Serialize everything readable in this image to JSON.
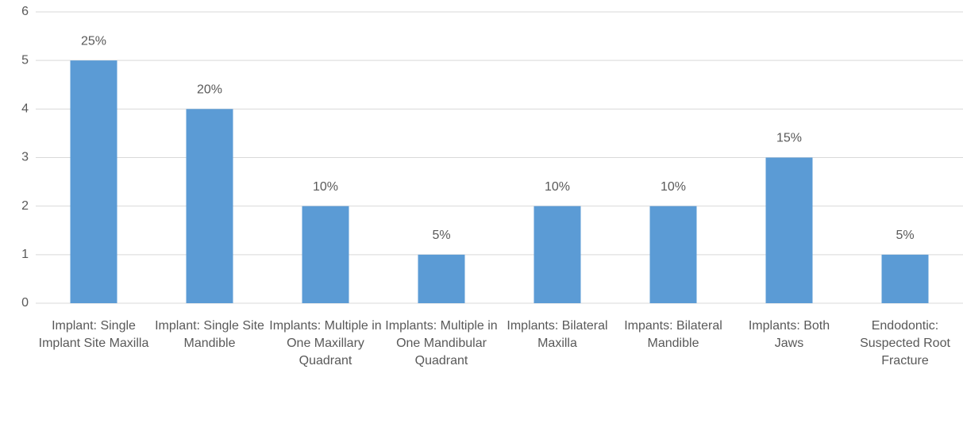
{
  "chart_data": {
    "type": "bar",
    "categories": [
      "Implant: Single Implant Site Maxilla",
      "Implant: Single Site Mandible",
      "Implants: Multiple in One Maxillary Quadrant",
      "Implants: Multiple in One Mandibular Quadrant",
      "Implants: Bilateral Maxilla",
      "Impants: Bilateral Mandible",
      "Implants: Both Jaws",
      "Endodontic: Suspected Root Fracture"
    ],
    "values": [
      5,
      4,
      2,
      1,
      2,
      2,
      3,
      1
    ],
    "value_labels": [
      "25%",
      "20%",
      "10%",
      "5%",
      "10%",
      "10%",
      "15%",
      "5%"
    ],
    "color": "#5b9bd5",
    "ylim": [
      0,
      6
    ],
    "yticks": [
      0,
      1,
      2,
      3,
      4,
      5,
      6
    ],
    "grid": true
  }
}
